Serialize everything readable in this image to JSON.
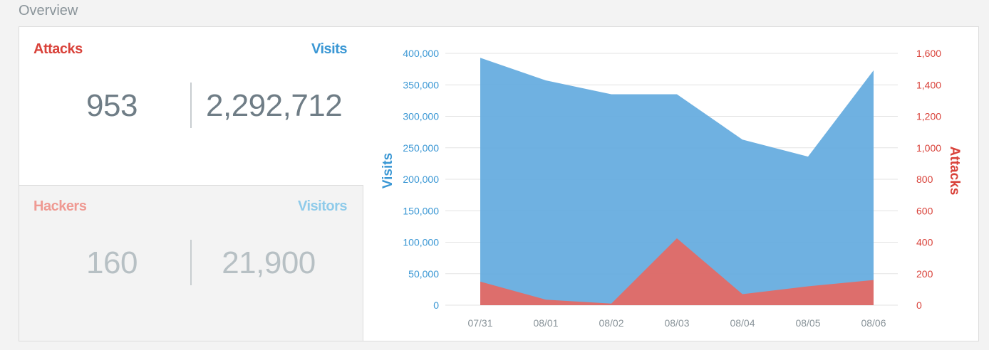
{
  "section": {
    "title": "Overview"
  },
  "stats": {
    "attacks_label": "Attacks",
    "visits_label": "Visits",
    "attacks_value": "953",
    "visits_value": "2,292,712",
    "hackers_label": "Hackers",
    "visitors_label": "Visitors",
    "hackers_value": "160",
    "visitors_value": "21,900"
  },
  "colors": {
    "attacks": "#d9423a",
    "visits": "#3a97d4",
    "hackers": "#ef9a93",
    "visitors": "#8fcbea",
    "value_dark": "#6f7d86",
    "value_light": "#b7c0c4"
  },
  "chart_data": {
    "type": "area",
    "categories": [
      "07/31",
      "08/01",
      "08/02",
      "08/03",
      "08/04",
      "08/05",
      "08/06"
    ],
    "series": [
      {
        "name": "Visits",
        "axis": "left",
        "color": "#5fa9de",
        "values": [
          393000,
          357000,
          335000,
          335000,
          263000,
          236000,
          373000
        ]
      },
      {
        "name": "Attacks",
        "axis": "right",
        "color": "#e36a65",
        "values": [
          150,
          35,
          10,
          425,
          70,
          120,
          160
        ]
      }
    ],
    "ylabel": "Visits",
    "y2label": "Attacks",
    "ylim": [
      0,
      400000
    ],
    "y2lim": [
      0,
      1600
    ],
    "yticks": [
      "0",
      "50,000",
      "100,000",
      "150,000",
      "200,000",
      "250,000",
      "300,000",
      "350,000",
      "400,000"
    ],
    "y2ticks": [
      "0",
      "200",
      "400",
      "600",
      "800",
      "1,000",
      "1,200",
      "1,400",
      "1,600"
    ],
    "grid": true
  }
}
